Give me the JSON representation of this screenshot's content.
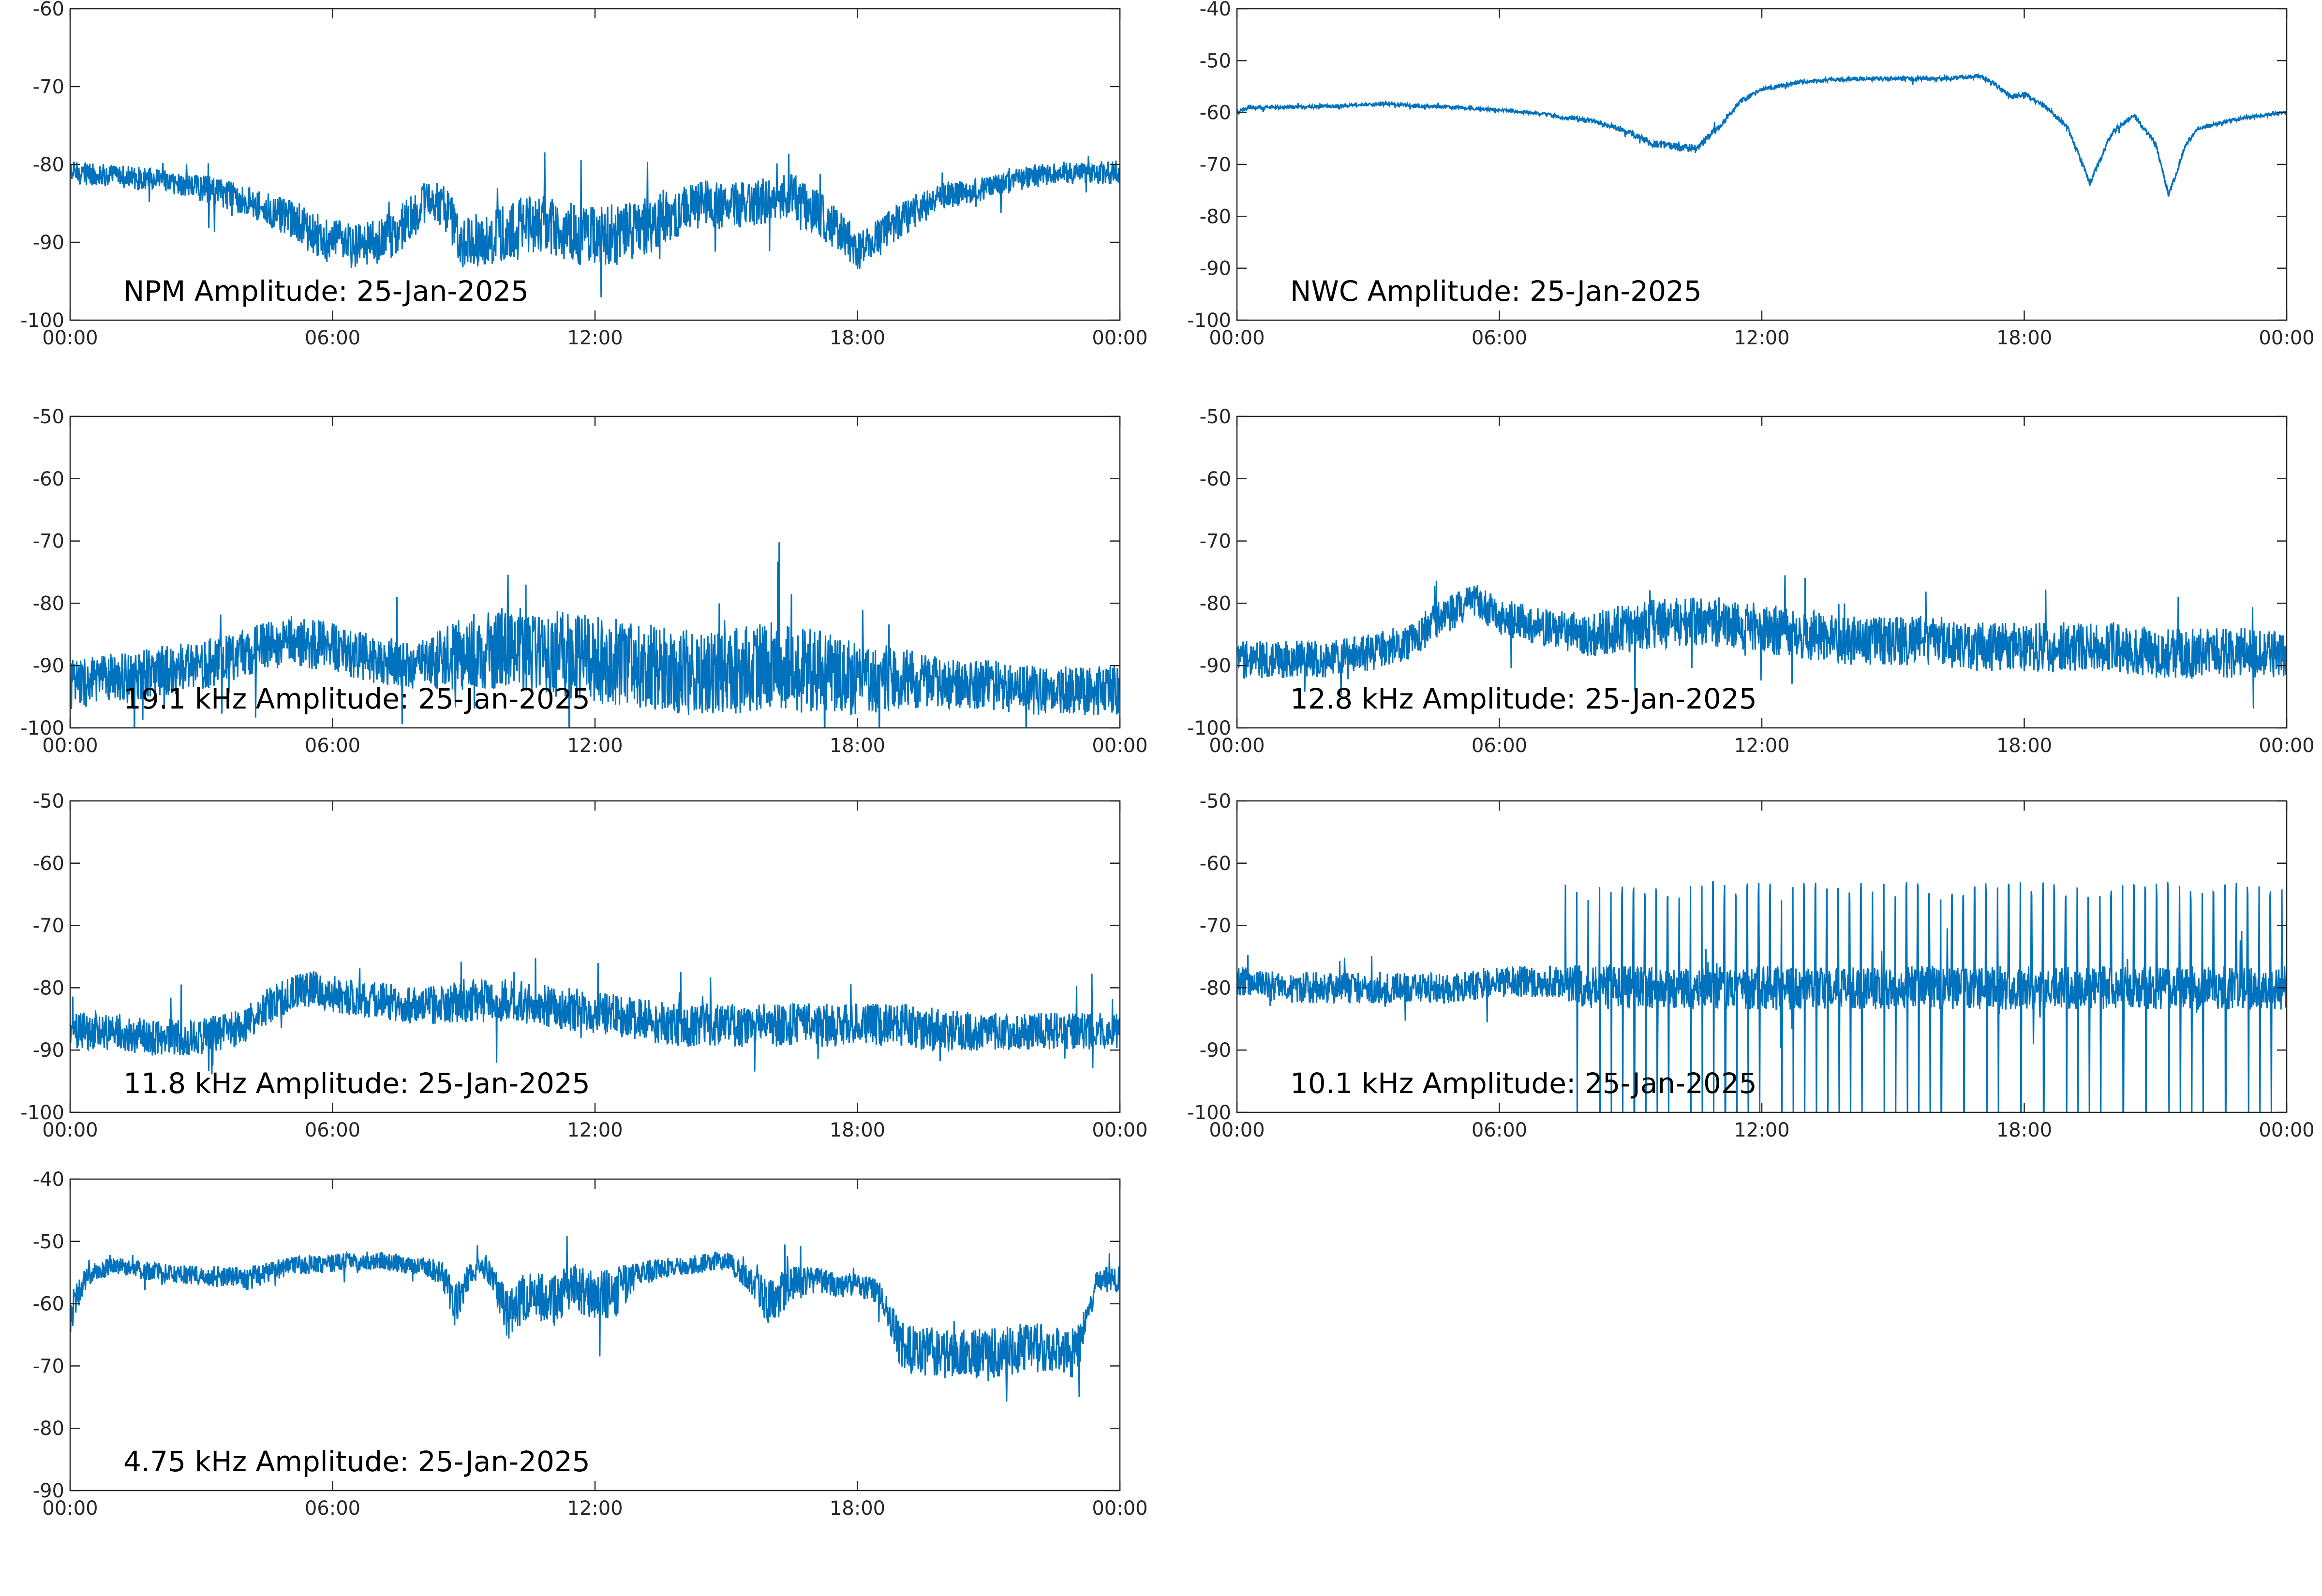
{
  "figure": {
    "series_color": "#0072BD"
  },
  "chart_data": [
    {
      "type": "line",
      "annotation": "NPM Amplitude: 25-Jan-2025",
      "x_ticks": [
        "00:00",
        "06:00",
        "12:00",
        "18:00",
        "00:00"
      ],
      "xlim_hours": [
        0,
        24
      ],
      "ylim": [
        -100,
        -60
      ],
      "y_ticks": [
        -100,
        -90,
        -80,
        -70,
        -60
      ],
      "series": [
        {
          "x": [
            0,
            1,
            2,
            3,
            4,
            5,
            5.5,
            6,
            6.5,
            7,
            7.5,
            8,
            8.3,
            8.6,
            9,
            9.5,
            10,
            10.5,
            11,
            11.5,
            12,
            12.5,
            13,
            13.5,
            14,
            14.5,
            15,
            15.5,
            16,
            16.5,
            17,
            17.5,
            18,
            18.5,
            19,
            19.5,
            20,
            21,
            22,
            23,
            24
          ],
          "y": [
            -81,
            -81.5,
            -82,
            -83,
            -84.5,
            -87,
            -88.5,
            -90,
            -90.5,
            -90,
            -88.5,
            -85.5,
            -84.5,
            -86,
            -90,
            -89.5,
            -89,
            -87.5,
            -88,
            -89,
            -89.5,
            -89,
            -88.5,
            -87,
            -86,
            -85,
            -85.5,
            -85,
            -84.5,
            -84,
            -86,
            -88,
            -91,
            -89.5,
            -87,
            -85.5,
            -84,
            -83,
            -81.5,
            -81,
            -81
          ],
          "spread": [
            1.5,
            1.5,
            1.5,
            1.8,
            2,
            2.5,
            3,
            3,
            3,
            3,
            3,
            3,
            2.5,
            3,
            3.5,
            3.5,
            4,
            4,
            4,
            4,
            4,
            4,
            4,
            3.5,
            3,
            3,
            3,
            3,
            3,
            3,
            3,
            3,
            2.5,
            2.5,
            2.5,
            2,
            1.8,
            1.5,
            1.5,
            1.5,
            1.5
          ]
        }
      ]
    },
    {
      "type": "line",
      "annotation": "NWC Amplitude: 25-Jan-2025",
      "x_ticks": [
        "00:00",
        "06:00",
        "12:00",
        "18:00",
        "00:00"
      ],
      "xlim_hours": [
        0,
        24
      ],
      "ylim": [
        -100,
        -40
      ],
      "y_ticks": [
        -100,
        -90,
        -80,
        -70,
        -60,
        -50,
        -40
      ],
      "series": [
        {
          "x": [
            0,
            0.3,
            1,
            2,
            3,
            3.5,
            4,
            5,
            6,
            7,
            7.5,
            8,
            8.5,
            9,
            9.5,
            10,
            10.5,
            11,
            11.5,
            12,
            13,
            14,
            15,
            16,
            17,
            17.3,
            17.7,
            18,
            18.5,
            19,
            19.5,
            20,
            20.5,
            21,
            21.3,
            21.7,
            22,
            23,
            24
          ],
          "y": [
            -60,
            -59,
            -59,
            -58.8,
            -58.5,
            -58.3,
            -58.7,
            -59,
            -59.5,
            -60.3,
            -61,
            -61.5,
            -62.5,
            -64,
            -66,
            -66.5,
            -67,
            -63,
            -58,
            -55.5,
            -54,
            -53.5,
            -53.5,
            -53.5,
            -53,
            -54.5,
            -57,
            -56.5,
            -59,
            -63,
            -73.5,
            -64,
            -60.5,
            -66,
            -76,
            -66,
            -63,
            -61,
            -60
          ],
          "spread": [
            0.4,
            0.4,
            0.3,
            0.3,
            0.3,
            0.3,
            0.3,
            0.3,
            0.3,
            0.3,
            0.4,
            0.5,
            0.5,
            0.6,
            0.8,
            0.8,
            0.8,
            0.6,
            0.5,
            0.4,
            0.4,
            0.4,
            0.4,
            0.4,
            0.4,
            0.5,
            0.5,
            0.5,
            0.5,
            0.5,
            0.6,
            0.5,
            0.4,
            0.5,
            0.6,
            0.5,
            0.4,
            0.3,
            0.3
          ]
        }
      ]
    },
    {
      "type": "line",
      "annotation": "19.1 kHz Amplitude: 25-Jan-2025",
      "x_ticks": [
        "00:00",
        "06:00",
        "12:00",
        "18:00",
        "00:00"
      ],
      "xlim_hours": [
        0,
        24
      ],
      "ylim": [
        -100,
        -50
      ],
      "y_ticks": [
        -100,
        -90,
        -80,
        -70,
        -60,
        -50
      ],
      "series": [
        {
          "x": [
            0,
            1,
            2,
            3,
            4,
            5,
            6,
            7,
            8,
            9,
            10,
            11,
            12,
            13,
            14,
            15,
            16,
            17,
            18,
            19,
            20,
            21,
            22,
            23,
            24
          ],
          "y": [
            -93,
            -92,
            -91,
            -90,
            -88,
            -86,
            -87,
            -89,
            -90,
            -88,
            -87,
            -88,
            -89,
            -90,
            -91,
            -91,
            -90,
            -91,
            -92,
            -92,
            -93,
            -93,
            -94,
            -94,
            -94
          ],
          "spread": [
            4,
            4,
            4,
            4,
            4,
            4,
            4,
            4,
            4,
            6,
            7,
            7,
            7,
            7,
            7,
            7,
            7,
            7,
            6,
            5,
            4,
            4,
            4,
            4,
            4
          ]
        }
      ]
    },
    {
      "type": "line",
      "annotation": "12.8 kHz Amplitude: 25-Jan-2025",
      "x_ticks": [
        "00:00",
        "06:00",
        "12:00",
        "18:00",
        "00:00"
      ],
      "xlim_hours": [
        0,
        24
      ],
      "ylim": [
        -100,
        -50
      ],
      "y_ticks": [
        -100,
        -90,
        -80,
        -70,
        -60,
        -50
      ],
      "series": [
        {
          "x": [
            0,
            1,
            2,
            3,
            4,
            4.5,
            5,
            5.5,
            6,
            7,
            8,
            9,
            10,
            11,
            12,
            13,
            14,
            15,
            16,
            17,
            18,
            19,
            20,
            21,
            22,
            23,
            24
          ],
          "y": [
            -89,
            -89,
            -89,
            -88,
            -86,
            -83,
            -81,
            -80,
            -82,
            -84,
            -85,
            -84,
            -83,
            -83,
            -84,
            -85,
            -86,
            -86,
            -86,
            -87,
            -87,
            -87,
            -87,
            -88,
            -88,
            -88,
            -88
          ],
          "spread": [
            3,
            3,
            3,
            3,
            3,
            3,
            3,
            3,
            3,
            3,
            3.5,
            4,
            4,
            4,
            4,
            4,
            4,
            4,
            4,
            4,
            4,
            4,
            4,
            4,
            4,
            4,
            4
          ]
        }
      ]
    },
    {
      "type": "line",
      "annotation": "11.8 kHz Amplitude: 25-Jan-2025",
      "x_ticks": [
        "00:00",
        "06:00",
        "12:00",
        "18:00",
        "00:00"
      ],
      "xlim_hours": [
        0,
        24
      ],
      "ylim": [
        -100,
        -50
      ],
      "y_ticks": [
        -100,
        -90,
        -80,
        -70,
        -60,
        -50
      ],
      "series": [
        {
          "x": [
            0,
            1,
            2,
            3,
            4,
            4.5,
            5,
            5.5,
            6,
            7,
            8,
            9,
            10,
            11,
            12,
            13,
            14,
            15,
            16,
            17,
            18,
            19,
            20,
            21,
            22,
            23,
            24
          ],
          "y": [
            -87,
            -87,
            -88,
            -88,
            -86,
            -83,
            -81,
            -80,
            -81,
            -82,
            -83,
            -82,
            -82,
            -83,
            -84,
            -85,
            -86,
            -86,
            -86,
            -86,
            -86,
            -86,
            -87,
            -87,
            -87,
            -87,
            -87
          ],
          "spread": [
            3,
            3,
            3,
            3,
            3,
            3,
            3,
            3,
            3,
            3,
            3,
            3.5,
            3.5,
            3.5,
            3.5,
            3.5,
            3.5,
            3.5,
            3.5,
            3.5,
            3.5,
            3.5,
            3.5,
            3,
            3,
            3,
            3
          ]
        }
      ]
    },
    {
      "type": "line",
      "annotation": "10.1 kHz Amplitude: 25-Jan-2025",
      "x_ticks": [
        "00:00",
        "06:00",
        "12:00",
        "18:00",
        "00:00"
      ],
      "xlim_hours": [
        0,
        24
      ],
      "ylim": [
        -100,
        -50
      ],
      "y_ticks": [
        -100,
        -90,
        -80,
        -70,
        -60,
        -50
      ],
      "series": [
        {
          "x": [
            0,
            1,
            2,
            3,
            4,
            5,
            6,
            7,
            7.5,
            8,
            9,
            10,
            11,
            12,
            13,
            14,
            15,
            16,
            17,
            18,
            19,
            20,
            21,
            22,
            23,
            24
          ],
          "y": [
            -79,
            -80,
            -80,
            -80,
            -80,
            -80,
            -79,
            -79,
            -79,
            -80,
            -80,
            -80,
            -80,
            -80,
            -80,
            -80,
            -80,
            -80,
            -80,
            -80,
            -80,
            -80,
            -80,
            -80,
            -80,
            -80
          ],
          "spread": [
            2.5,
            2.5,
            2.5,
            2.5,
            2.5,
            2.5,
            2.5,
            2.5,
            3,
            3.5,
            3.5,
            3.5,
            3.5,
            3.5,
            3.5,
            3.5,
            3.5,
            3.5,
            3.5,
            3.5,
            3.5,
            3.5,
            3.5,
            3.5,
            3.5,
            3.5
          ]
        }
      ]
    },
    {
      "type": "line",
      "annotation": "4.75 kHz Amplitude: 25-Jan-2025",
      "x_ticks": [
        "00:00",
        "06:00",
        "12:00",
        "18:00",
        "00:00"
      ],
      "xlim_hours": [
        0,
        24
      ],
      "ylim": [
        -90,
        -40
      ],
      "y_ticks": [
        -90,
        -80,
        -70,
        -60,
        -50,
        -40
      ],
      "series": [
        {
          "x": [
            0,
            0.2,
            0.5,
            1,
            2,
            3,
            4,
            5,
            6,
            7,
            8,
            8.5,
            8.8,
            9.2,
            9.5,
            10,
            10.5,
            11,
            11.5,
            12,
            12.5,
            13,
            14,
            15,
            15.5,
            16,
            16.5,
            17,
            17.5,
            18,
            18.5,
            19,
            20,
            21,
            22,
            23,
            23.5,
            24
          ],
          "y": [
            -62,
            -58,
            -55,
            -54,
            -55,
            -55.5,
            -56,
            -54,
            -53.5,
            -53,
            -54,
            -55,
            -60,
            -55,
            -54,
            -62,
            -58,
            -60,
            -57,
            -59,
            -58,
            -55,
            -54,
            -53,
            -56,
            -60,
            -57,
            -56,
            -57,
            -57,
            -58,
            -67,
            -68,
            -68,
            -67,
            -68,
            -56,
            -56
          ],
          "spread": [
            3,
            2.5,
            1.5,
            1.5,
            1.5,
            1.5,
            2,
            1.5,
            1.5,
            1.5,
            1.5,
            2,
            4,
            2,
            2,
            4,
            4,
            4,
            4,
            4,
            4,
            2,
            1.5,
            1.5,
            2,
            4,
            3,
            2,
            2,
            2,
            2,
            4,
            4,
            4,
            4,
            4,
            2,
            2
          ]
        }
      ]
    }
  ]
}
